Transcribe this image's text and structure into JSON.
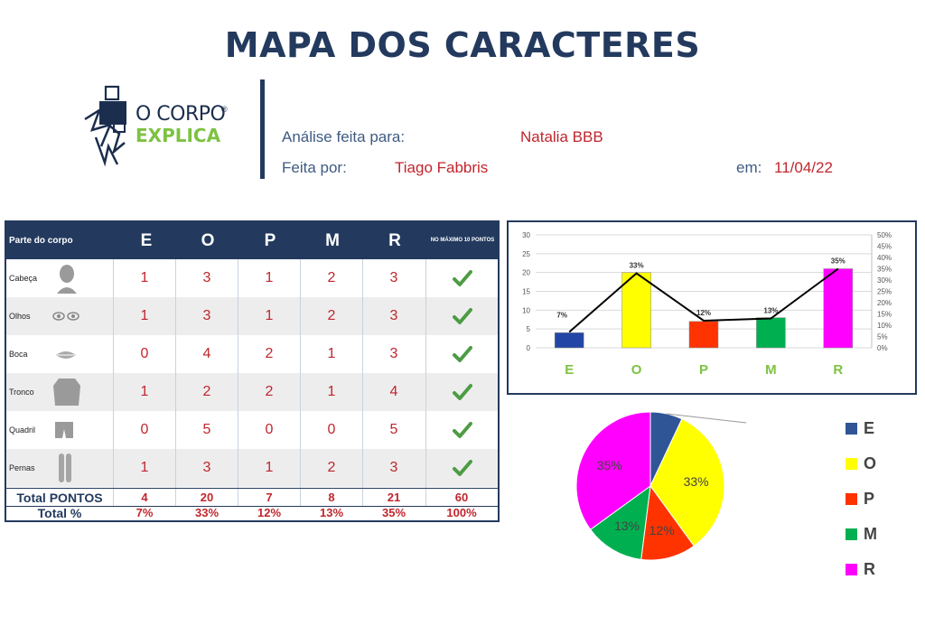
{
  "header": {
    "title": "MAPA DOS CARACTERES",
    "logo_line1": "O CORPO",
    "logo_reg": "®",
    "logo_line2": "EXPLICA"
  },
  "info": {
    "analysis_label": "Análise feita para:",
    "analysis_value": "Natalia BBB",
    "author_label": "Feita por:",
    "author_value": "Tiago Fabbris",
    "date_label": "em:",
    "date_value": "11/04/22"
  },
  "table": {
    "part_header": "Parte do corpo",
    "columns": [
      "E",
      "O",
      "P",
      "M",
      "R"
    ],
    "max_header": "NO MÁXIMO 10 PONTOS",
    "rows": [
      {
        "label": "Cabeça",
        "icon": "head-icon",
        "values": [
          "1",
          "3",
          "1",
          "2",
          "3"
        ]
      },
      {
        "label": "Olhos",
        "icon": "eyes-icon",
        "values": [
          "1",
          "3",
          "1",
          "2",
          "3"
        ]
      },
      {
        "label": "Boca",
        "icon": "mouth-icon",
        "values": [
          "0",
          "4",
          "2",
          "1",
          "3"
        ]
      },
      {
        "label": "Tronco",
        "icon": "torso-icon",
        "values": [
          "1",
          "2",
          "2",
          "1",
          "4"
        ]
      },
      {
        "label": "Quadril",
        "icon": "hip-icon",
        "values": [
          "0",
          "5",
          "0",
          "0",
          "5"
        ]
      },
      {
        "label": "Pernas",
        "icon": "legs-icon",
        "values": [
          "1",
          "3",
          "1",
          "2",
          "3"
        ]
      }
    ],
    "total_points_label": "Total PONTOS",
    "total_points": [
      "4",
      "20",
      "7",
      "8",
      "21",
      "60"
    ],
    "total_pct_label": "Total %",
    "total_pct": [
      "7%",
      "33%",
      "12%",
      "13%",
      "35%",
      "100%"
    ]
  },
  "chart_data": [
    {
      "type": "bar",
      "categories": [
        "E",
        "O",
        "P",
        "M",
        "R"
      ],
      "series": [
        {
          "values": [
            4,
            20,
            7,
            8,
            21
          ],
          "type": "bar"
        },
        {
          "values": [
            7,
            33,
            12,
            13,
            35
          ],
          "type": "line",
          "axis": "right"
        }
      ],
      "data_labels": [
        "7%",
        "33%",
        "12%",
        "13%",
        "35%"
      ],
      "ylim": [
        0,
        30
      ],
      "yticks": [
        "0",
        "5",
        "10",
        "15",
        "20",
        "25",
        "30"
      ],
      "y2lim": [
        0,
        50
      ],
      "y2ticks": [
        "0%",
        "5%",
        "10%",
        "15%",
        "20%",
        "25%",
        "30%",
        "35%",
        "40%",
        "45%",
        "50%"
      ],
      "grid": true,
      "colors": [
        "#2346a6",
        "#ffff00",
        "#ff3300",
        "#00b050",
        "#ff00ff"
      ],
      "category_label_color": "#7dc242"
    },
    {
      "type": "pie",
      "categories": [
        "E",
        "O",
        "P",
        "M",
        "R"
      ],
      "values": [
        7,
        33,
        12,
        13,
        35
      ],
      "slice_labels": [
        "",
        "33%",
        "12%",
        "13%",
        "35%"
      ],
      "colors": [
        "#2f5597",
        "#ffff00",
        "#ff3300",
        "#00b050",
        "#ff00ff"
      ],
      "legend": "right"
    }
  ],
  "colors": {
    "navy": "#233a5e",
    "value_red": "#c0262d",
    "green_check": "#4d9c44"
  }
}
